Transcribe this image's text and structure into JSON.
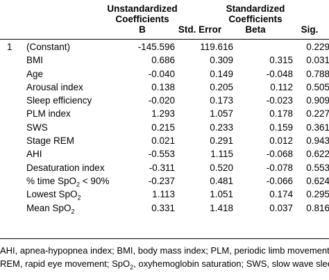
{
  "headers": {
    "unstd_line1": "Unstandardized",
    "unstd_line2": "Coefficients",
    "unstd_b": "B",
    "std_error": "Std. Error",
    "std_line1": "Standardized",
    "std_line2": "Coefficients",
    "std_beta": "Beta",
    "sig": "Sig."
  },
  "rows": [
    {
      "num": "1",
      "label": "(Constant)",
      "label_parts": [
        "(Constant)"
      ],
      "b": "-145.596",
      "se": "119.616",
      "beta": "",
      "sig": "0.229"
    },
    {
      "num": "",
      "label": "BMI",
      "label_parts": [
        "BMI"
      ],
      "b": "0.686",
      "se": "0.309",
      "beta": "0.315",
      "sig": "0.031"
    },
    {
      "num": "",
      "label": "Age",
      "label_parts": [
        "Age"
      ],
      "b": "-0.040",
      "se": "0.149",
      "beta": "-0.048",
      "sig": "0.788"
    },
    {
      "num": "",
      "label": "Arousal index",
      "label_parts": [
        "Arousal index"
      ],
      "b": "0.138",
      "se": "0.205",
      "beta": "0.112",
      "sig": "0.505"
    },
    {
      "num": "",
      "label": "Sleep efficiency",
      "label_parts": [
        "Sleep efficiency"
      ],
      "b": "-0.020",
      "se": "0.173",
      "beta": "-0.023",
      "sig": "0.909"
    },
    {
      "num": "",
      "label": "PLM index",
      "label_parts": [
        "PLM index"
      ],
      "b": "1.293",
      "se": "1.057",
      "beta": "0.178",
      "sig": "0.227"
    },
    {
      "num": "",
      "label": "SWS",
      "label_parts": [
        "SWS"
      ],
      "b": "0.215",
      "se": "0.233",
      "beta": "0.159",
      "sig": "0.361"
    },
    {
      "num": "",
      "label": "Stage REM",
      "label_parts": [
        "Stage REM"
      ],
      "b": "0.021",
      "se": "0.291",
      "beta": "0.012",
      "sig": "0.943"
    },
    {
      "num": "",
      "label": "AHI",
      "label_parts": [
        "AHI"
      ],
      "b": "-0.553",
      "se": "1.115",
      "beta": "-0.068",
      "sig": "0.622"
    },
    {
      "num": "",
      "label": "Desaturation index",
      "label_parts": [
        "Desaturation index"
      ],
      "b": "-0.311",
      "se": "0.520",
      "beta": "-0.078",
      "sig": "0.553"
    },
    {
      "num": "",
      "label": "% time SpO2 < 90%",
      "label_parts": [
        "% time SpO",
        "2",
        " < 90%"
      ],
      "b": "-0.237",
      "se": "0.481",
      "beta": "-0.066",
      "sig": "0.624"
    },
    {
      "num": "",
      "label": "Lowest SpO2",
      "label_parts": [
        "Lowest SpO",
        "2",
        ""
      ],
      "b": "1.113",
      "se": "1.051",
      "beta": "0.174",
      "sig": "0.295"
    },
    {
      "num": "",
      "label": "Mean SpO2",
      "label_parts": [
        "Mean SpO",
        "2",
        ""
      ],
      "b": "0.331",
      "se": "1.418",
      "beta": "0.037",
      "sig": "0.816"
    }
  ],
  "footnote": {
    "line1": "AHI, apnea-hypopnea index; BMI, body mass index; PLM, periodic limb movement;",
    "line2_parts": [
      "REM, rapid eye movement; SpO",
      "2",
      ", oxyhemoglobin saturation; SWS, slow wave sleep."
    ]
  }
}
